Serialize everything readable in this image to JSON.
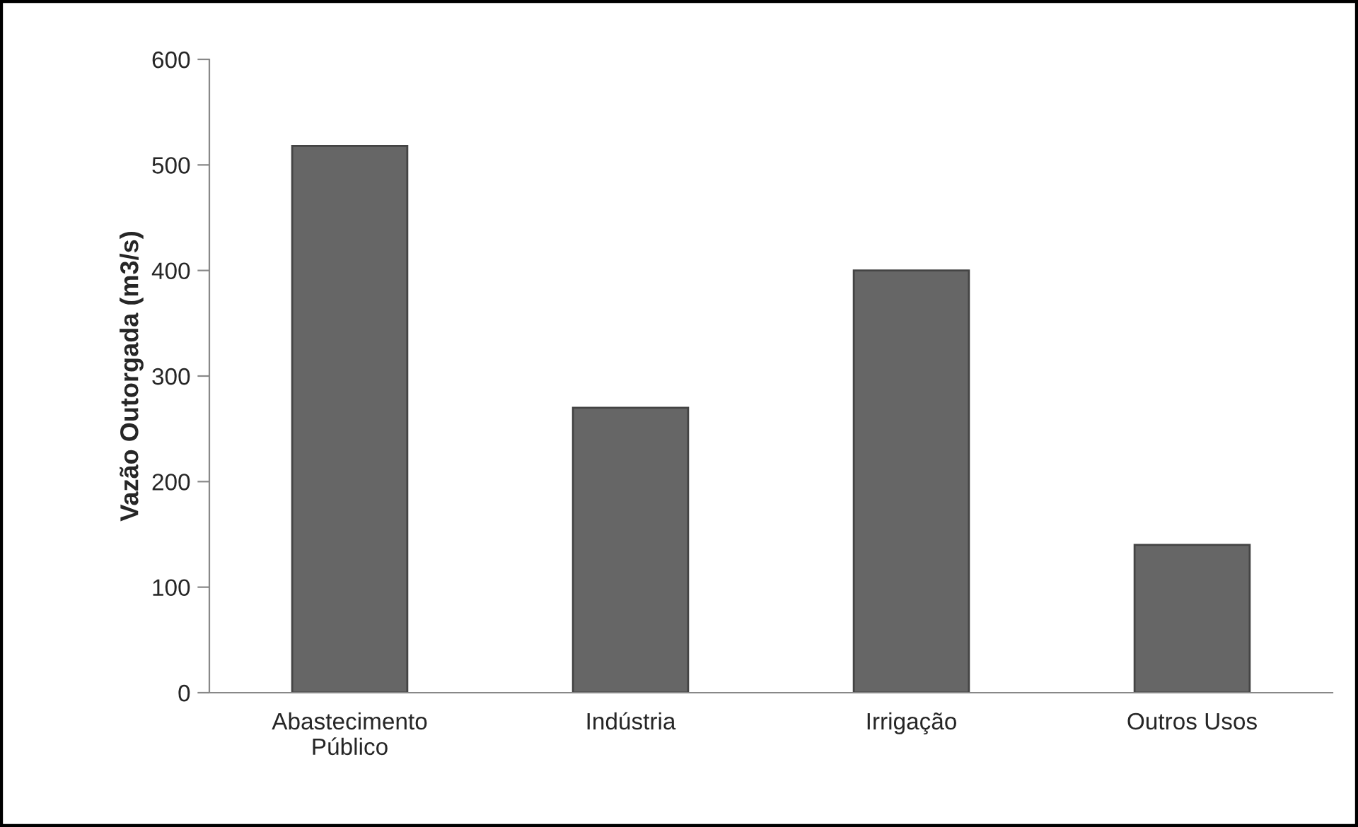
{
  "chart_data": {
    "type": "bar",
    "ylabel": "Vazão Outorgada (m3/s)",
    "categories": [
      "Abastecimento\nPúblico",
      "Indústria",
      "Irrigação",
      "Outros Usos"
    ],
    "values": [
      518,
      270,
      400,
      140
    ],
    "color": "#666666",
    "ylim": [
      0,
      600
    ],
    "yticks": [
      0,
      100,
      200,
      300,
      400,
      500,
      600
    ],
    "grid": false,
    "legend": false
  }
}
